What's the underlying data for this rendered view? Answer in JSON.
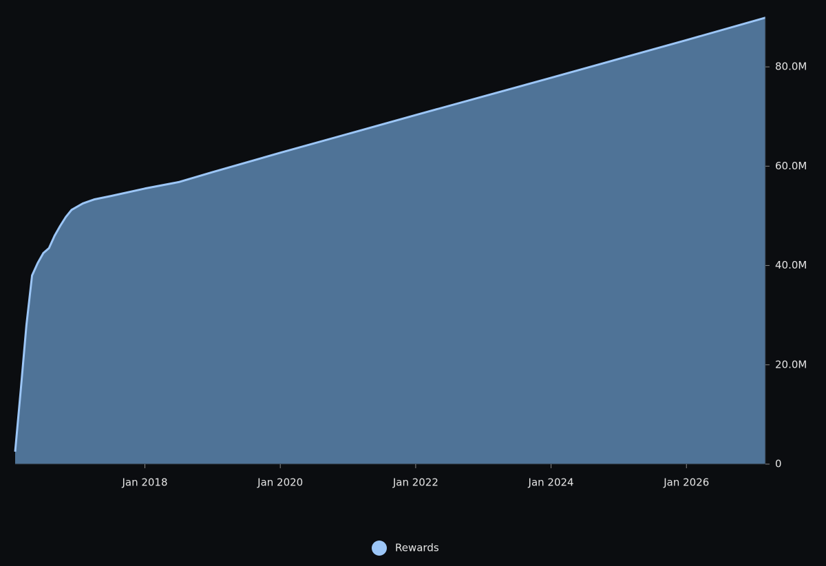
{
  "chart_data": {
    "type": "area",
    "x": [
      "2016-02",
      "2016-03",
      "2016-04",
      "2016-05",
      "2016-06",
      "2016-07",
      "2016-08",
      "2016-09",
      "2016-10",
      "2016-11",
      "2016-12",
      "2017-02",
      "2017-04",
      "2017-07",
      "2018-01",
      "2018-07",
      "2019-01",
      "2020-01",
      "2022-01",
      "2024-01",
      "2026-01",
      "2027-03"
    ],
    "series": [
      {
        "name": "Rewards",
        "color": "#9cc6f7",
        "fill": "#4f7397",
        "values": [
          2500000,
          15000000,
          28000000,
          38000000,
          40500000,
          42500000,
          43500000,
          46000000,
          48000000,
          49800000,
          51200000,
          52500000,
          53300000,
          54000000,
          55500000,
          56800000,
          58800000,
          62700000,
          70300000,
          77800000,
          85400000,
          89900000
        ]
      }
    ],
    "xlim": [
      "2016-02",
      "2027-03"
    ],
    "xticks": [
      {
        "value": "2018-01",
        "label": "Jan 2018"
      },
      {
        "value": "2020-01",
        "label": "Jan 2020"
      },
      {
        "value": "2022-01",
        "label": "Jan 2022"
      },
      {
        "value": "2024-01",
        "label": "Jan 2024"
      },
      {
        "value": "2026-01",
        "label": "Jan 2026"
      }
    ],
    "ylim": [
      0,
      90000000
    ],
    "yticks": [
      0,
      {
        "value": 20000000,
        "label": "20.0M"
      },
      {
        "value": 40000000,
        "label": "40.0M"
      },
      {
        "value": 60000000,
        "label": "60.0M"
      },
      {
        "value": 80000000,
        "label": "80.0M"
      }
    ],
    "y_axis_side": "right",
    "legend": "bottom",
    "grid": false
  }
}
